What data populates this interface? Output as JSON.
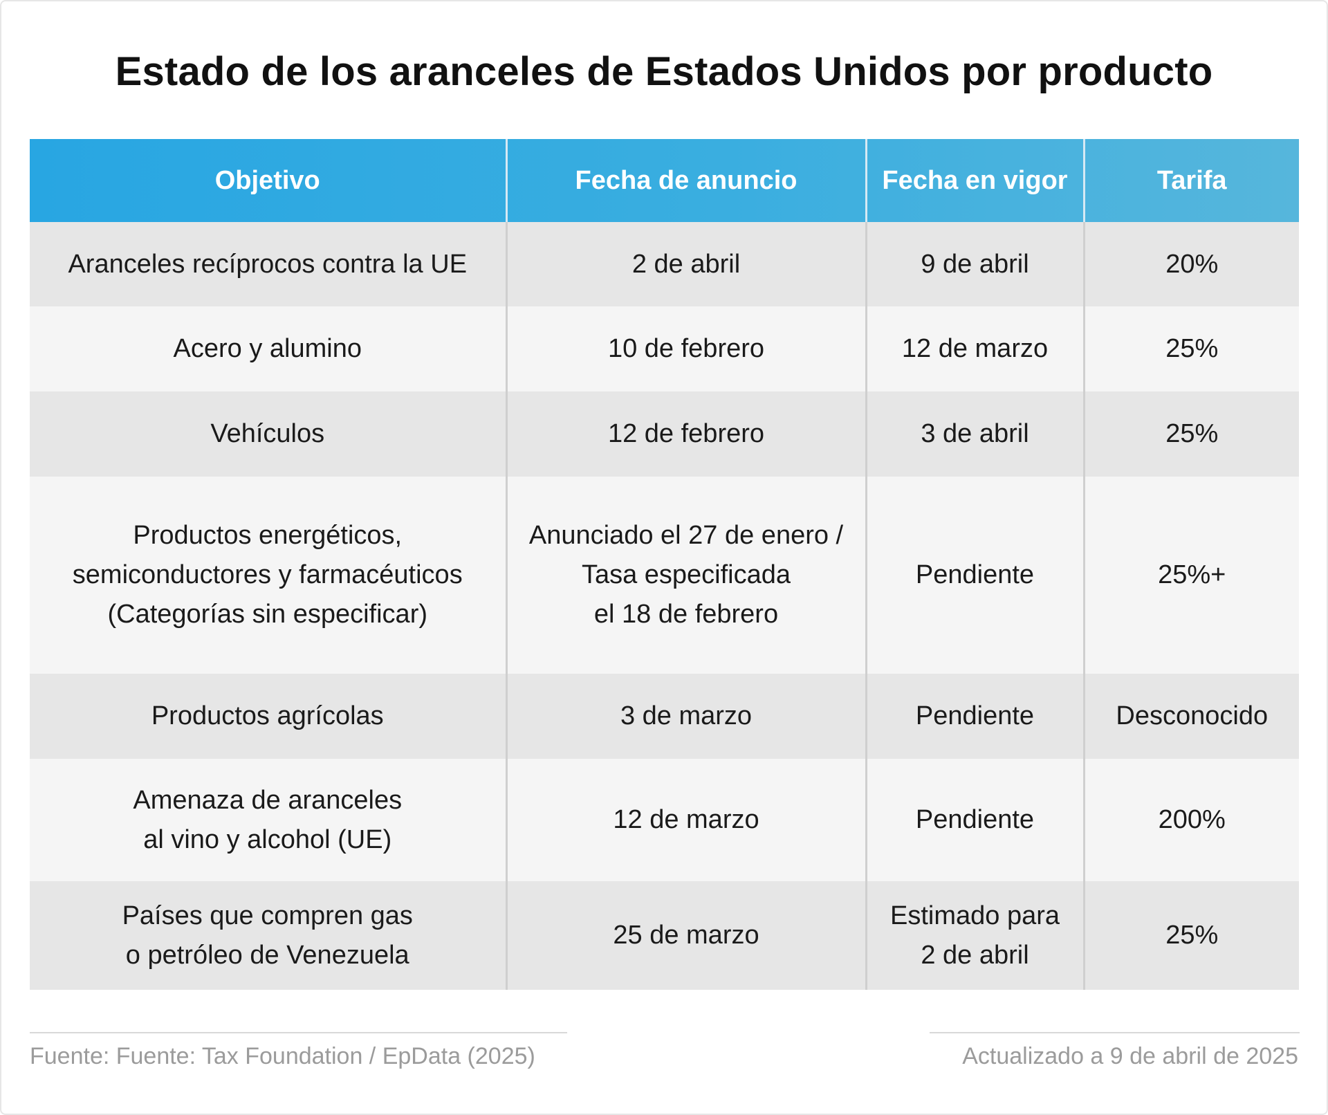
{
  "title": "Estado de los aranceles de Estados Unidos por producto",
  "colors": {
    "header_gradient_start": "#28a6e2",
    "header_gradient_end": "#56b6dc",
    "row_odd": "#e6e6e6",
    "row_even": "#f5f5f5",
    "footer_text": "#9b9b9b"
  },
  "table": {
    "headers": [
      "Objetivo",
      "Fecha de anuncio",
      "Fecha en vigor",
      "Tarifa"
    ],
    "rows": [
      [
        "Aranceles recíprocos contra la UE",
        "2 de abril",
        "9 de abril",
        "20%"
      ],
      [
        "Acero y alumino",
        "10 de febrero",
        "12 de marzo",
        "25%"
      ],
      [
        "Vehículos",
        "12 de febrero",
        "3 de abril",
        "25%"
      ],
      [
        "Productos energéticos,\nsemiconductores y farmacéuticos\n(Categorías sin especificar)",
        "Anunciado el 27 de enero /\nTasa especificada\nel 18 de febrero",
        "Pendiente",
        "25%+"
      ],
      [
        "Productos agrícolas",
        "3 de marzo",
        "Pendiente",
        "Desconocido"
      ],
      [
        "Amenaza de aranceles\nal vino y alcohol (UE)",
        "12 de marzo",
        "Pendiente",
        "200%"
      ],
      [
        "Países que compren gas\no petróleo de Venezuela",
        "25 de marzo",
        "Estimado para\n2 de abril",
        "25%"
      ]
    ]
  },
  "footer": {
    "source": "Fuente: Fuente: Tax Foundation / EpData (2025)",
    "updated": "Actualizado a 9 de abril de 2025"
  }
}
